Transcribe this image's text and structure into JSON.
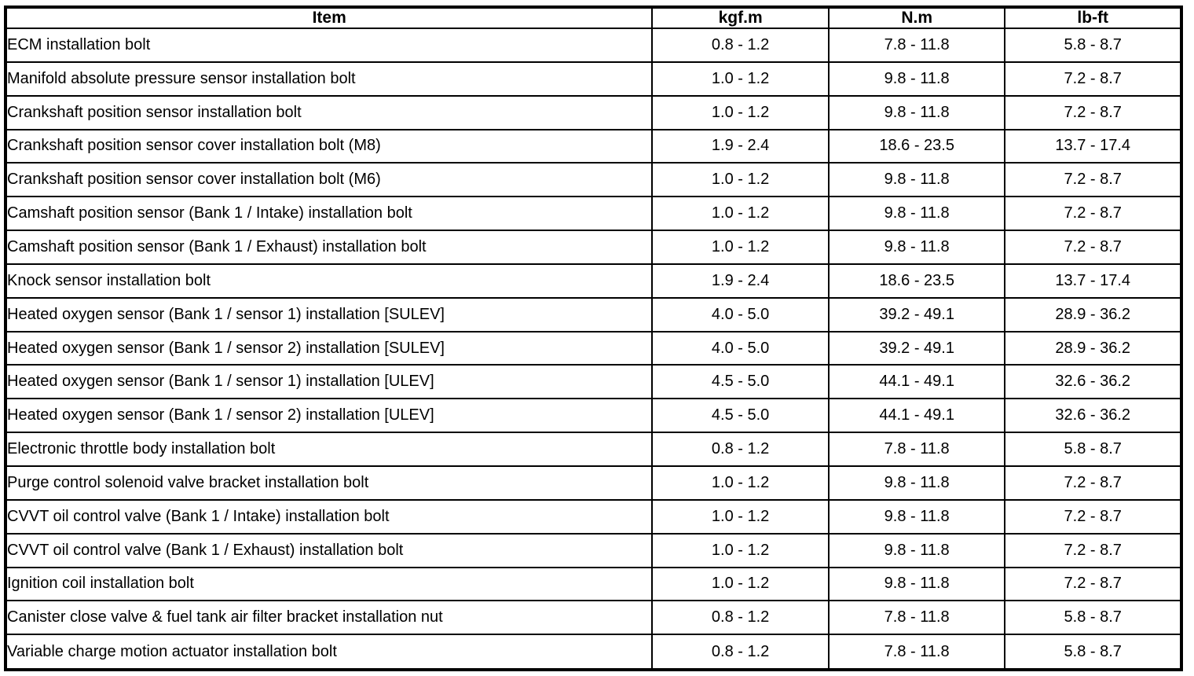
{
  "table": {
    "headers": {
      "item": "Item",
      "kgfm": "kgf.m",
      "nm": "N.m",
      "lbft": "lb-ft"
    },
    "rows": [
      {
        "item": "ECM installation bolt",
        "kgfm": "0.8 - 1.2",
        "nm": "7.8 - 11.8",
        "lbft": "5.8 - 8.7"
      },
      {
        "item": "Manifold absolute pressure sensor installation bolt",
        "kgfm": "1.0 - 1.2",
        "nm": "9.8 - 11.8",
        "lbft": "7.2 - 8.7"
      },
      {
        "item": "Crankshaft position sensor installation bolt",
        "kgfm": "1.0 - 1.2",
        "nm": "9.8 - 11.8",
        "lbft": "7.2 - 8.7"
      },
      {
        "item": "Crankshaft position sensor cover installation bolt (M8)",
        "kgfm": "1.9 - 2.4",
        "nm": "18.6 - 23.5",
        "lbft": "13.7 - 17.4"
      },
      {
        "item": "Crankshaft position sensor cover installation bolt (M6)",
        "kgfm": "1.0 - 1.2",
        "nm": "9.8 - 11.8",
        "lbft": "7.2 - 8.7"
      },
      {
        "item": "Camshaft position sensor (Bank 1 / Intake) installation bolt",
        "kgfm": "1.0 - 1.2",
        "nm": "9.8 - 11.8",
        "lbft": "7.2 - 8.7"
      },
      {
        "item": "Camshaft position sensor (Bank 1 / Exhaust) installation bolt",
        "kgfm": "1.0 - 1.2",
        "nm": "9.8 - 11.8",
        "lbft": "7.2 - 8.7"
      },
      {
        "item": "Knock sensor installation bolt",
        "kgfm": "1.9 - 2.4",
        "nm": "18.6 - 23.5",
        "lbft": "13.7 - 17.4"
      },
      {
        "item": "Heated oxygen sensor (Bank 1 / sensor 1) installation [SULEV]",
        "kgfm": "4.0 - 5.0",
        "nm": "39.2 - 49.1",
        "lbft": "28.9 - 36.2"
      },
      {
        "item": "Heated oxygen sensor (Bank 1 / sensor 2) installation [SULEV]",
        "kgfm": "4.0 - 5.0",
        "nm": "39.2 - 49.1",
        "lbft": "28.9 - 36.2"
      },
      {
        "item": "Heated oxygen sensor (Bank 1 / sensor 1) installation [ULEV]",
        "kgfm": "4.5 - 5.0",
        "nm": "44.1 - 49.1",
        "lbft": "32.6 - 36.2"
      },
      {
        "item": "Heated oxygen sensor (Bank 1 / sensor 2) installation [ULEV]",
        "kgfm": "4.5 - 5.0",
        "nm": "44.1 - 49.1",
        "lbft": "32.6 - 36.2"
      },
      {
        "item": "Electronic throttle body installation bolt",
        "kgfm": "0.8 - 1.2",
        "nm": "7.8 - 11.8",
        "lbft": "5.8 - 8.7"
      },
      {
        "item": "Purge control solenoid valve bracket installation bolt",
        "kgfm": "1.0 - 1.2",
        "nm": "9.8 - 11.8",
        "lbft": "7.2 - 8.7"
      },
      {
        "item": "CVVT oil control valve (Bank 1 / Intake) installation bolt",
        "kgfm": "1.0 - 1.2",
        "nm": "9.8 - 11.8",
        "lbft": "7.2 - 8.7"
      },
      {
        "item": "CVVT oil control valve (Bank 1 / Exhaust) installation bolt",
        "kgfm": "1.0 - 1.2",
        "nm": "9.8 - 11.8",
        "lbft": "7.2 - 8.7"
      },
      {
        "item": "Ignition coil installation bolt",
        "kgfm": "1.0 - 1.2",
        "nm": "9.8 - 11.8",
        "lbft": "7.2 - 8.7"
      },
      {
        "item": "Canister close valve & fuel tank air filter bracket installation nut",
        "kgfm": "0.8 - 1.2",
        "nm": "7.8 - 11.8",
        "lbft": "5.8 - 8.7"
      },
      {
        "item": "Variable charge motion actuator installation bolt",
        "kgfm": "0.8 - 1.2",
        "nm": "7.8 - 11.8",
        "lbft": "5.8 - 8.7"
      }
    ]
  }
}
